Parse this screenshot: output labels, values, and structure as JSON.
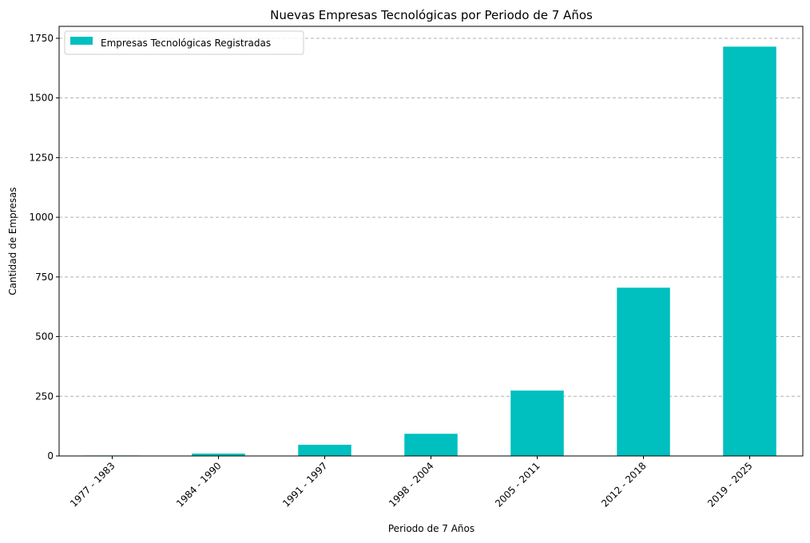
{
  "chart_data": {
    "type": "bar",
    "title": "Nuevas Empresas Tecnológicas por Periodo de 7 Años",
    "xlabel": "Periodo de 7 Años",
    "ylabel": "Cantidad de Empresas",
    "categories": [
      "1977 - 1983",
      "1984 - 1990",
      "1991 - 1997",
      "1998 - 2004",
      "2005 - 2011",
      "2012 - 2018",
      "2019 - 2025"
    ],
    "series": [
      {
        "name": "Empresas Tecnológicas Registradas",
        "values": [
          2,
          10,
          47,
          93,
          274,
          705,
          1715
        ],
        "color": "#00bfbf"
      }
    ],
    "ylim": [
      0,
      1800
    ],
    "yticks": [
      0,
      250,
      500,
      750,
      1000,
      1250,
      1500,
      1750
    ],
    "grid": "y-dashed",
    "legend_position": "top-left"
  }
}
